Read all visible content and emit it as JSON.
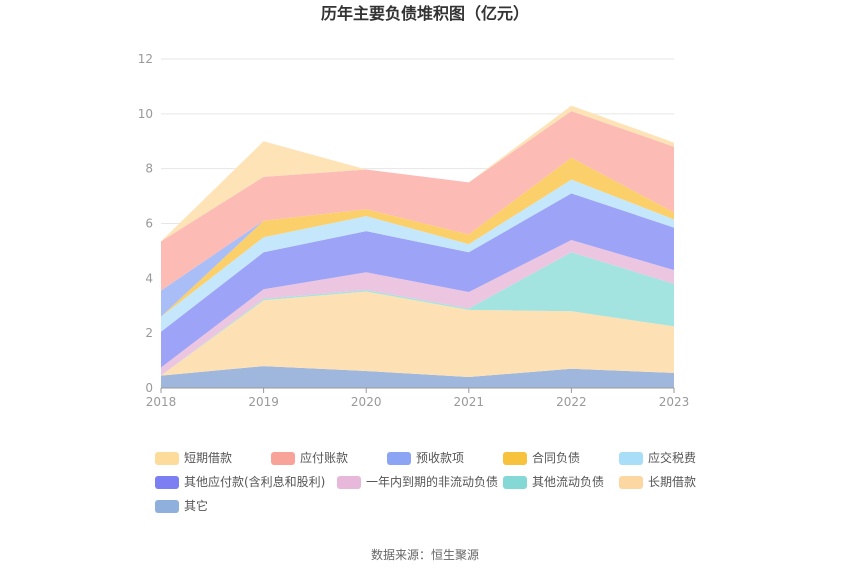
{
  "chart_data": {
    "type": "area",
    "stacked": true,
    "title": "历年主要负债堆积图（亿元）",
    "source": "数据来源：恒生聚源",
    "x": [
      "2018",
      "2019",
      "2020",
      "2021",
      "2022",
      "2023"
    ],
    "y_ticks": [
      "0",
      "2",
      "4",
      "6",
      "8",
      "10",
      "12"
    ],
    "ylim": [
      0,
      12
    ],
    "grid": true,
    "legend_position": "bottom",
    "series": [
      {
        "name": "其它",
        "color": "#9fb7dc",
        "values": [
          0.45,
          0.8,
          0.62,
          0.4,
          0.7,
          0.55
        ]
      },
      {
        "name": "长期借款",
        "color": "#fde1b4",
        "values": [
          0.0,
          2.4,
          2.9,
          2.45,
          2.1,
          1.7
        ]
      },
      {
        "name": "其他流动负债",
        "color": "#a3e3e0",
        "values": [
          0.0,
          0.05,
          0.05,
          0.05,
          2.15,
          1.55
        ]
      },
      {
        "name": "一年内到期的非流动负债",
        "color": "#ecc6e0",
        "values": [
          0.3,
          0.35,
          0.65,
          0.6,
          0.45,
          0.5
        ]
      },
      {
        "name": "其他应付款(含利息和股利)",
        "color": "#9da3f6",
        "values": [
          1.3,
          1.35,
          1.5,
          1.45,
          1.7,
          1.55
        ]
      },
      {
        "name": "应交税费",
        "color": "#c5e7fb",
        "values": [
          0.55,
          0.55,
          0.55,
          0.3,
          0.5,
          0.3
        ]
      },
      {
        "name": "合同负债",
        "color": "#fbd06a",
        "values": [
          0.0,
          0.6,
          0.25,
          0.35,
          0.8,
          0.25
        ]
      },
      {
        "name": "预收款项",
        "color": "#a9bdf7",
        "values": [
          0.95,
          0.0,
          0.0,
          0.0,
          0.0,
          0.0
        ]
      },
      {
        "name": "应付账款",
        "color": "#fcbcb5",
        "values": [
          1.8,
          1.6,
          1.45,
          1.9,
          1.7,
          2.4
        ]
      },
      {
        "name": "短期借款",
        "color": "#fde3b6",
        "values": [
          0.0,
          1.3,
          0.0,
          0.0,
          0.2,
          0.15
        ]
      }
    ],
    "legend": [
      {
        "name": "短期借款",
        "color": "#fddb9a"
      },
      {
        "name": "应付账款",
        "color": "#f8a39a"
      },
      {
        "name": "预收款项",
        "color": "#8ba4f3"
      },
      {
        "name": "合同负债",
        "color": "#f8c33c"
      },
      {
        "name": "应交税费",
        "color": "#a8def8"
      },
      {
        "name": "其他应付款(含利息和股利)",
        "color": "#7b7ff2"
      },
      {
        "name": "一年内到期的非流动负债",
        "color": "#e8b8db"
      },
      {
        "name": "其他流动负债",
        "color": "#84d9d6"
      },
      {
        "name": "长期借款",
        "color": "#fdd7a1"
      },
      {
        "name": "其它",
        "color": "#8fb0dc"
      }
    ]
  }
}
